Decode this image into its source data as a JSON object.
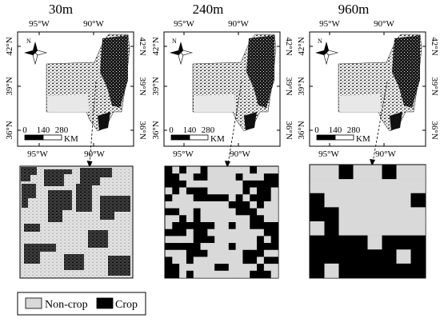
{
  "panels": [
    {
      "title": "30m",
      "zoom_grid": []
    },
    {
      "title": "240m",
      "zoom_grid": [
        "1010010000001000",
        "1100110000100011",
        "1110000000011111",
        "0101110000010110",
        "1000111110101110",
        "0000000001110100",
        "1100100000111000",
        "0010100000001100",
        "0111111001001111",
        "1110110000000011",
        "0000111000000101",
        "1111100001000111",
        "0001110000011100",
        "1001000000011011",
        "1100000110000100",
        "1101000000001110"
      ]
    },
    {
      "title": "960m",
      "zoom_grid": [
        "00100100",
        "00000000",
        "10000001",
        "11000000",
        "01000000",
        "11110111",
        "11111101",
        "10111111"
      ]
    }
  ],
  "axes": {
    "lon_top": [
      "95°W",
      "90°W"
    ],
    "lon_bottom": [
      "95°W",
      "90°W"
    ],
    "lat_left": [
      "42°N",
      "39°N",
      "36°N"
    ],
    "lat_right": [
      "42°N",
      "39°N",
      "36°N"
    ]
  },
  "north_label": "N",
  "scalebar": {
    "ticks": [
      "0",
      "140",
      "280"
    ],
    "unit": "KM"
  },
  "legend": {
    "noncrop_label": "Non-crop",
    "crop_label": "Crop",
    "noncrop_color": "#d9d9d9",
    "crop_color": "#000000"
  }
}
